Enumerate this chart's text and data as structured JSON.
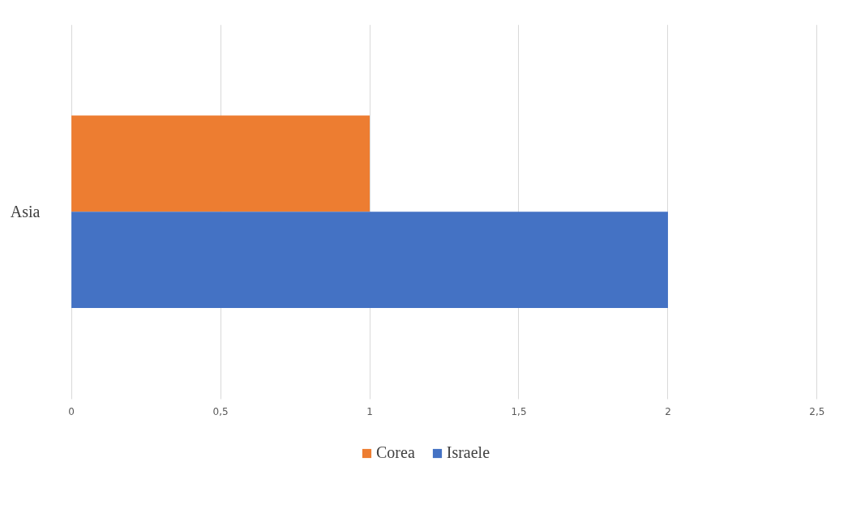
{
  "chart_data": {
    "type": "bar",
    "orientation": "horizontal",
    "categories": [
      "Asia"
    ],
    "series": [
      {
        "name": "Corea",
        "color": "#ed7d31",
        "values": [
          1
        ]
      },
      {
        "name": "Israele",
        "color": "#4472c4",
        "values": [
          2
        ]
      }
    ],
    "xlim": [
      0,
      2.5
    ],
    "xticks": [
      0,
      {
        "value": 0.5,
        "label": "0,5"
      },
      1,
      {
        "value": 1.5,
        "label": "1,5"
      },
      2,
      {
        "value": 2.5,
        "label": "2,5"
      }
    ],
    "grid": "x",
    "legend": "bottom"
  }
}
